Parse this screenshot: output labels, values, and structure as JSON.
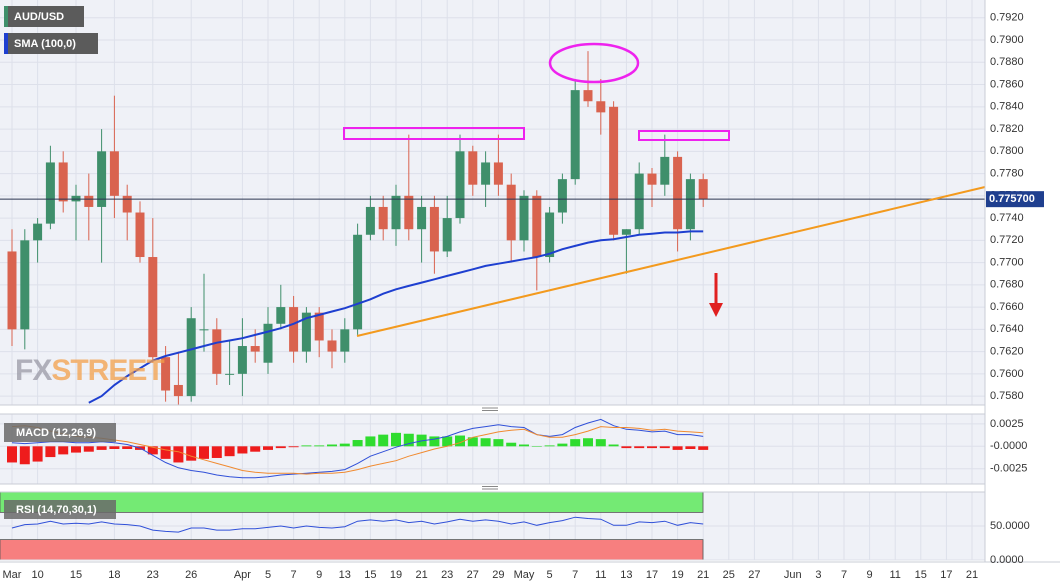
{
  "chart_data": [
    {
      "type": "candlestick",
      "categories": [
        "Mar",
        null,
        "10",
        null,
        null,
        "15",
        null,
        null,
        "18",
        null,
        null,
        "23",
        null,
        null,
        "26",
        null,
        null,
        null,
        "Apr",
        null,
        "5",
        null,
        "7",
        null,
        "9",
        null,
        "13",
        null,
        "15",
        null,
        "19",
        null,
        "21",
        null,
        "23",
        null,
        "27",
        null,
        "29",
        null,
        "May",
        null,
        "5",
        null,
        "7",
        null,
        "11",
        null,
        "13",
        null,
        "17",
        null,
        "19",
        null,
        "21",
        null,
        "25",
        null,
        "27",
        null,
        null,
        "Jun",
        null,
        "3",
        null,
        "7",
        null,
        "9",
        null,
        "11",
        null,
        "15",
        null,
        "17",
        null,
        "21"
      ],
      "series": [
        {
          "name": "AUD/USD",
          "type": "candlestick",
          "up_color": "#3f8f6b",
          "down_color": "#d9634f",
          "open": [
            0.771,
            0.764,
            0.772,
            0.7735,
            0.779,
            0.7755,
            0.776,
            0.775,
            0.78,
            0.776,
            0.7745,
            0.7705,
            0.7615,
            0.759,
            0.758,
            0.764,
            0.764,
            0.76,
            0.76,
            0.7625,
            0.761,
            0.7645,
            0.766,
            0.762,
            0.7655,
            0.763,
            0.762,
            0.764,
            0.7725,
            0.775,
            0.773,
            0.776,
            0.773,
            0.775,
            0.771,
            0.774,
            0.78,
            0.777,
            0.779,
            0.777,
            0.772,
            0.776,
            0.7705,
            0.7745,
            0.7775,
            0.7855,
            0.7845,
            0.784,
            0.7725,
            0.773,
            0.778,
            0.777,
            0.7795,
            0.773,
            0.7775,
            null,
            null,
            null,
            null,
            null,
            null,
            null,
            null,
            null,
            null,
            null,
            null,
            null,
            null,
            null,
            null,
            null,
            null,
            null,
            null,
            null
          ],
          "high": [
            0.773,
            0.773,
            0.774,
            0.7805,
            0.78,
            0.777,
            0.778,
            0.782,
            0.785,
            0.777,
            0.7755,
            0.774,
            0.7625,
            0.762,
            0.766,
            0.769,
            0.765,
            0.763,
            0.765,
            0.764,
            0.766,
            0.768,
            0.767,
            0.766,
            0.766,
            0.764,
            0.765,
            0.7735,
            0.776,
            0.776,
            0.777,
            0.7815,
            0.776,
            0.776,
            0.776,
            0.7815,
            0.7805,
            0.78,
            0.7815,
            0.778,
            0.7765,
            0.7765,
            0.775,
            0.778,
            0.7865,
            0.789,
            0.7865,
            0.7845,
            0.773,
            0.779,
            0.7785,
            0.7815,
            0.78,
            0.778,
            0.778,
            null,
            null,
            null,
            null,
            null,
            null,
            null,
            null,
            null,
            null,
            null,
            null,
            null,
            null,
            null,
            null,
            null,
            null,
            null,
            null,
            null
          ],
          "low": [
            0.7625,
            0.7622,
            0.77,
            0.773,
            0.7745,
            0.772,
            0.772,
            0.77,
            0.774,
            0.772,
            0.77,
            0.761,
            0.7575,
            0.7565,
            0.7575,
            0.762,
            0.759,
            0.759,
            0.758,
            0.761,
            0.76,
            0.764,
            0.761,
            0.761,
            0.7615,
            0.7605,
            0.761,
            0.7635,
            0.772,
            0.772,
            0.7715,
            0.772,
            0.77,
            0.769,
            0.7705,
            0.7735,
            0.776,
            0.775,
            0.776,
            0.77,
            0.771,
            0.7675,
            0.77,
            0.7735,
            0.777,
            0.784,
            0.7815,
            0.772,
            0.769,
            0.7725,
            0.775,
            0.776,
            0.771,
            0.772,
            0.775,
            null,
            null,
            null,
            null,
            null,
            null,
            null,
            null,
            null,
            null,
            null,
            null,
            null,
            null,
            null,
            null,
            null,
            null,
            null,
            null,
            null
          ],
          "close": [
            0.764,
            0.772,
            0.7735,
            0.779,
            0.7755,
            0.776,
            0.775,
            0.78,
            0.776,
            0.7745,
            0.7705,
            0.7615,
            0.7585,
            0.758,
            0.765,
            0.764,
            0.76,
            0.76,
            0.7625,
            0.762,
            0.7645,
            0.766,
            0.762,
            0.7655,
            0.763,
            0.762,
            0.764,
            0.7725,
            0.775,
            0.773,
            0.776,
            0.773,
            0.775,
            0.771,
            0.774,
            0.78,
            0.777,
            0.779,
            0.777,
            0.772,
            0.776,
            0.7705,
            0.7745,
            0.7775,
            0.7855,
            0.7845,
            0.7835,
            0.7725,
            0.773,
            0.778,
            0.777,
            0.7795,
            0.773,
            0.7775,
            0.7757,
            null,
            null,
            null,
            null,
            null,
            null,
            null,
            null,
            null,
            null,
            null,
            null,
            null,
            null,
            null,
            null,
            null,
            null,
            null,
            null,
            null
          ]
        },
        {
          "name": "SMA (100,0)",
          "type": "line",
          "color": "#1e3fd0",
          "values": [
            null,
            null,
            null,
            null,
            null,
            null,
            0.7574,
            0.758,
            0.759,
            0.7598,
            0.7605,
            0.7612,
            0.7616,
            0.7619,
            0.7622,
            0.7625,
            0.7628,
            0.763,
            0.7632,
            0.7635,
            0.7638,
            0.7641,
            0.7645,
            0.765,
            0.7653,
            0.7656,
            0.7659,
            0.7663,
            0.7667,
            0.7672,
            0.7676,
            0.7679,
            0.7682,
            0.7685,
            0.7688,
            0.7691,
            0.7694,
            0.7697,
            0.7699,
            0.7701,
            0.7703,
            0.7705,
            0.7708,
            0.7712,
            0.7715,
            0.7718,
            0.772,
            0.7721,
            0.7723,
            0.7725,
            0.7726,
            0.7727,
            0.7727,
            0.7728,
            0.7728,
            null,
            null,
            null,
            null,
            null,
            null,
            null,
            null,
            null,
            null,
            null,
            null,
            null,
            null,
            null,
            null,
            null,
            null,
            null,
            null,
            null
          ]
        }
      ],
      "last_price": {
        "value": 0.7757,
        "label": "0.775700"
      },
      "ylim": [
        0.7572,
        0.7936
      ],
      "yticks": [
        {
          "value": 0.758,
          "label": "0.7580"
        },
        {
          "value": 0.76,
          "label": "0.7600"
        },
        {
          "value": 0.762,
          "label": "0.7620"
        },
        {
          "value": 0.764,
          "label": "0.7640"
        },
        {
          "value": 0.766,
          "label": "0.7660"
        },
        {
          "value": 0.768,
          "label": "0.7680"
        },
        {
          "value": 0.77,
          "label": "0.7700"
        },
        {
          "value": 0.772,
          "label": "0.7720"
        },
        {
          "value": 0.774,
          "label": "0.7740"
        },
        {
          "value": 0.776,
          "label": "0.7760"
        },
        {
          "value": 0.778,
          "label": "0.7780"
        },
        {
          "value": 0.78,
          "label": "0.7800"
        },
        {
          "value": 0.782,
          "label": "0.7820"
        },
        {
          "value": 0.784,
          "label": "0.7840"
        },
        {
          "value": 0.786,
          "label": "0.7860"
        },
        {
          "value": 0.788,
          "label": "0.7880"
        },
        {
          "value": 0.79,
          "label": "0.7900"
        },
        {
          "value": 0.792,
          "label": "0.7920"
        }
      ],
      "grid": true,
      "watermark": [
        "FX",
        "STREET"
      ]
    },
    {
      "type": "macd",
      "title": "MACD (12,26,9)",
      "series": [
        {
          "type": "bar",
          "up_color": "#2fdc2f",
          "down_color": "#ee1c1c",
          "values": [
            -0.0018,
            -0.002,
            -0.0017,
            -0.0012,
            -0.0009,
            -0.0007,
            -0.0006,
            -0.0004,
            -0.0003,
            -0.0003,
            -0.0004,
            -0.0009,
            -0.0014,
            -0.0018,
            -0.0016,
            -0.0014,
            -0.0013,
            -0.0011,
            -0.0008,
            -0.0006,
            -0.0004,
            -0.0002,
            -0.0001,
            0.0001,
            0.0001,
            0.0002,
            0.0003,
            0.0007,
            0.0011,
            0.0013,
            0.0015,
            0.0014,
            0.0013,
            0.0011,
            0.0011,
            0.0012,
            0.001,
            0.0009,
            0.0008,
            0.0004,
            0.0002,
            0.0,
            0.0001,
            0.0003,
            0.0008,
            0.0009,
            0.0008,
            0.0002,
            -0.0002,
            -0.0002,
            -0.0002,
            -0.0002,
            -0.0004,
            -0.0003,
            -0.0004,
            null,
            null,
            null,
            null,
            null,
            null,
            null,
            null,
            null,
            null,
            null,
            null,
            null,
            null,
            null,
            null,
            null,
            null,
            null,
            null,
            null
          ]
        },
        {
          "type": "line",
          "color": "#3050d8",
          "values": [
            0.0004,
            0.0003,
            0.0004,
            0.0005,
            0.0005,
            0.0004,
            0.0004,
            0.0005,
            0.0004,
            0.0002,
            -0.0002,
            -0.001,
            -0.0018,
            -0.0024,
            -0.0027,
            -0.0029,
            -0.0032,
            -0.0034,
            -0.0035,
            -0.0035,
            -0.0034,
            -0.0032,
            -0.0031,
            -0.003,
            -0.0029,
            -0.0028,
            -0.0026,
            -0.0019,
            -0.0011,
            -0.0006,
            -0.0001,
            0.0003,
            0.0006,
            0.0008,
            0.0011,
            0.0016,
            0.002,
            0.0022,
            0.0024,
            0.0022,
            0.0021,
            0.0013,
            0.0011,
            0.0013,
            0.0021,
            0.0026,
            0.003,
            0.0023,
            0.0019,
            0.0018,
            0.0016,
            0.0017,
            0.0013,
            0.0013,
            0.0011,
            null,
            null,
            null,
            null,
            null,
            null,
            null,
            null,
            null,
            null,
            null,
            null,
            null,
            null,
            null,
            null,
            null,
            null,
            null,
            null,
            null
          ]
        },
        {
          "type": "line",
          "color": "#f08a30",
          "values": [
            0.0022,
            0.0023,
            0.0021,
            0.0017,
            0.0014,
            0.0011,
            0.001,
            0.0009,
            0.0007,
            0.0005,
            0.0002,
            -0.0001,
            -0.0004,
            -0.0006,
            -0.0011,
            -0.0015,
            -0.0019,
            -0.0023,
            -0.0027,
            -0.0029,
            -0.003,
            -0.003,
            -0.003,
            -0.0031,
            -0.003,
            -0.003,
            -0.0029,
            -0.0026,
            -0.0022,
            -0.0019,
            -0.0016,
            -0.0011,
            -0.0007,
            -0.0003,
            0.0,
            0.0004,
            0.001,
            0.0013,
            0.0016,
            0.0018,
            0.0019,
            0.0013,
            0.001,
            0.001,
            0.0013,
            0.0017,
            0.0022,
            0.0021,
            0.0021,
            0.002,
            0.0018,
            0.0019,
            0.0017,
            0.0016,
            0.0015,
            null,
            null,
            null,
            null,
            null,
            null,
            null,
            null,
            null,
            null,
            null,
            null,
            null,
            null,
            null,
            null,
            null,
            null,
            null,
            null,
            null
          ]
        }
      ],
      "ylim": [
        -0.0042,
        0.0036
      ],
      "yticks": [
        {
          "value": 0.0025,
          "label": "0.0025"
        },
        {
          "value": 0,
          "label": "-0.0000"
        },
        {
          "value": -0.0025,
          "label": "-0.0025"
        }
      ],
      "grid": true
    },
    {
      "type": "line",
      "title": "RSI (14,70,30,1)",
      "zones": [
        {
          "from": 70,
          "to": 100,
          "color": "#74ea74"
        },
        {
          "from": 0,
          "to": 30,
          "color": "#f77f7f"
        }
      ],
      "series": [
        {
          "type": "line",
          "color": "#3050d8",
          "values": [
            47,
            52,
            53,
            57,
            53,
            54,
            53,
            56,
            53,
            52,
            50,
            44,
            42,
            41,
            47,
            47,
            44,
            44,
            46,
            46,
            48,
            50,
            47,
            50,
            48,
            47,
            49,
            57,
            59,
            57,
            59,
            55,
            57,
            53,
            56,
            60,
            57,
            59,
            57,
            53,
            56,
            51,
            55,
            58,
            63,
            61,
            60,
            51,
            51,
            56,
            55,
            57,
            51,
            55,
            53,
            null,
            null,
            null,
            null,
            null,
            null,
            null,
            null,
            null,
            null,
            null,
            null,
            null,
            null,
            null,
            null,
            null,
            null,
            null,
            null,
            null
          ]
        }
      ],
      "ylim": [
        0,
        100
      ],
      "yticks": [
        {
          "value": 50,
          "label": "50.0000"
        },
        {
          "value": 0,
          "label": "0.0000"
        }
      ],
      "grid": true
    }
  ]
}
